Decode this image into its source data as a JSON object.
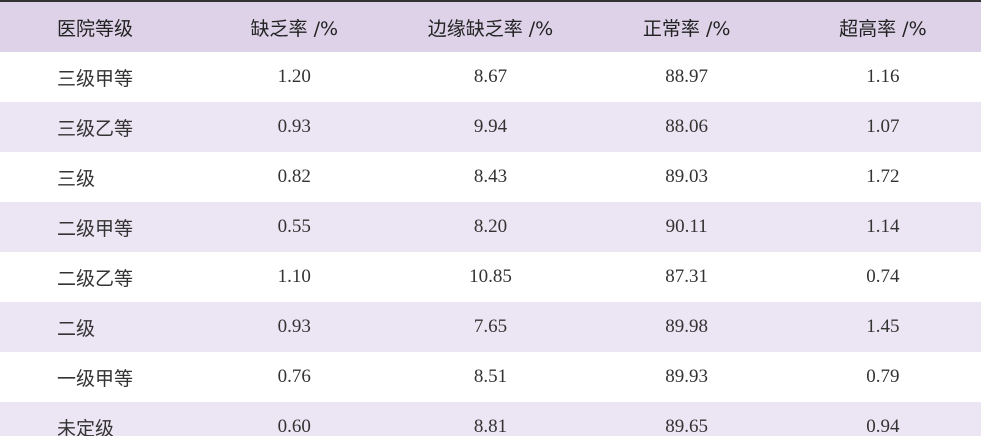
{
  "table": {
    "header": [
      "医院等级",
      "缺乏率 /%",
      "边缘缺乏率 /%",
      "正常率 /%",
      "超高率 /%"
    ],
    "rows": [
      [
        "三级甲等",
        "1.20",
        "8.67",
        "88.97",
        "1.16"
      ],
      [
        "三级乙等",
        "0.93",
        "9.94",
        "88.06",
        "1.07"
      ],
      [
        "三级",
        "0.82",
        "8.43",
        "89.03",
        "1.72"
      ],
      [
        "二级甲等",
        "0.55",
        "8.20",
        "90.11",
        "1.14"
      ],
      [
        "二级乙等",
        "1.10",
        "10.85",
        "87.31",
        "0.74"
      ],
      [
        "二级",
        "0.93",
        "7.65",
        "89.98",
        "1.45"
      ],
      [
        "一级甲等",
        "0.76",
        "8.51",
        "89.93",
        "0.79"
      ],
      [
        "未定级",
        "0.60",
        "8.81",
        "89.65",
        "0.94"
      ]
    ]
  }
}
